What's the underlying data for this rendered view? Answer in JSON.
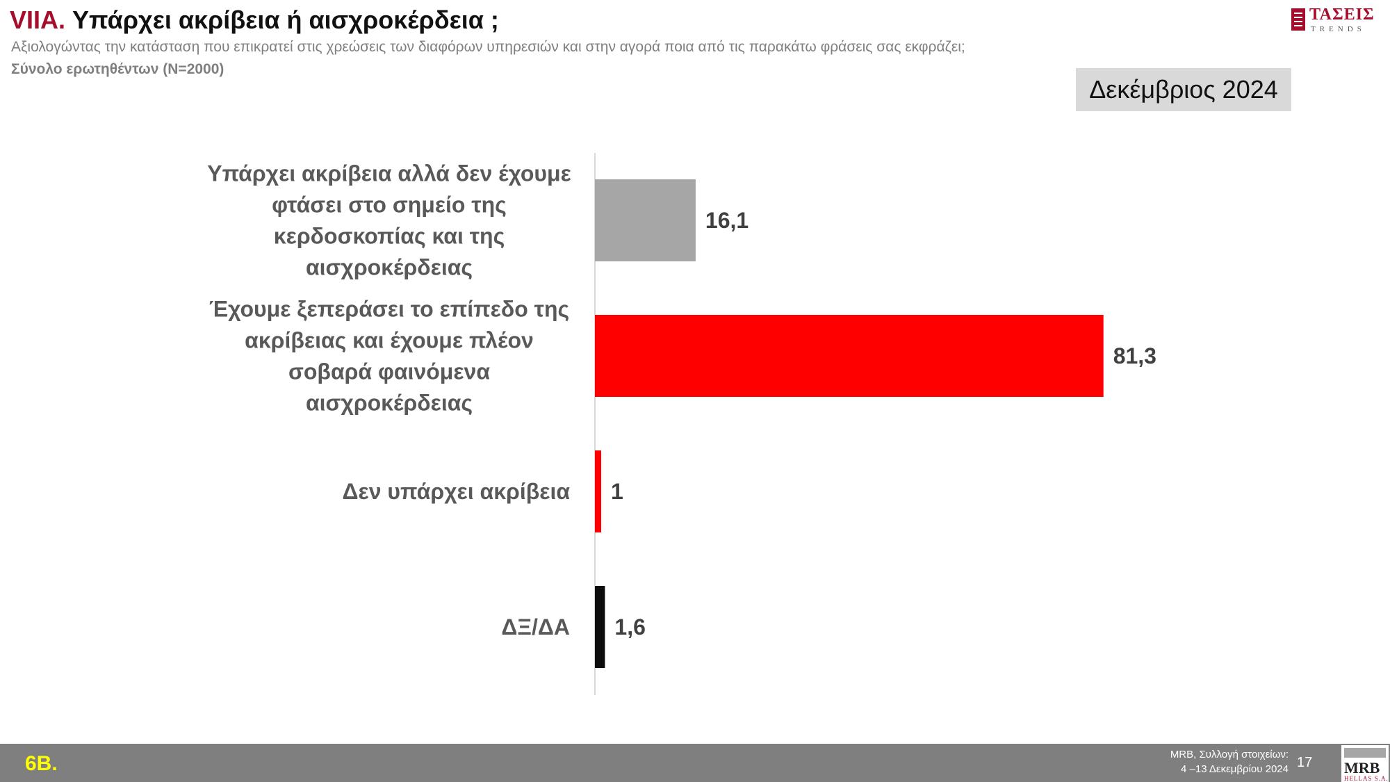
{
  "header": {
    "prefix": "VIIA.",
    "title": "Υπάρχει ακρίβεια ή αισχροκέρδεια ;",
    "subtitle": "Αξιολογώντας την κατάσταση που επικρατεί στις χρεώσεις των διαφόρων υπηρεσιών και στην αγορά ποια από τις παρακάτω φράσεις σας εκφράζει;",
    "sample": "Σύνολο ερωτηθέντων (N=2000)"
  },
  "logo": {
    "name": "ΤΑΣΕΙΣ",
    "sub": "TRENDS"
  },
  "date_badge": "Δεκέμβριος 2024",
  "chart_data": {
    "type": "bar",
    "orientation": "horizontal",
    "categories": [
      "Υπάρχει ακρίβεια αλλά δεν έχουμε φτάσει στο σημείο της κερδοσκοπίας και της αισχροκέρδειας",
      "Έχουμε ξεπεράσει το επίπεδο της ακρίβειας και έχουμε πλέον σοβαρά φαινόμενα αισχροκέρδειας",
      "Δεν υπάρχει ακρίβεια",
      "ΔΞ/ΔΑ"
    ],
    "category_lines": [
      [
        "Υπάρχει ακρίβεια αλλά δεν έχουμε",
        "φτάσει στο σημείο της",
        "κερδοσκοπίας και της",
        "αισχροκέρδειας"
      ],
      [
        "Έχουμε ξεπεράσει το επίπεδο της",
        "ακρίβειας και έχουμε πλέον",
        "σοβαρά φαινόμενα",
        "αισχροκέρδειας"
      ],
      [
        "Δεν υπάρχει ακρίβεια"
      ],
      [
        "ΔΞ/ΔΑ"
      ]
    ],
    "values": [
      16.1,
      81.3,
      1,
      1.6
    ],
    "value_labels": [
      "16,1",
      "81,3",
      "1",
      "1,6"
    ],
    "colors": [
      "#a6a6a6",
      "#ff0000",
      "#ff0000",
      "#0d0d0d"
    ],
    "xlim": [
      0,
      100
    ],
    "grid": false,
    "legend": "none"
  },
  "footer": {
    "code": "6Β.",
    "source_line1": "MRB, Συλλογή στοιχείων:",
    "source_line2": "4 –13 Δεκεμβρίου 2024",
    "page": "17",
    "company": "MRB",
    "company_sub": "HELLAS S.A."
  }
}
